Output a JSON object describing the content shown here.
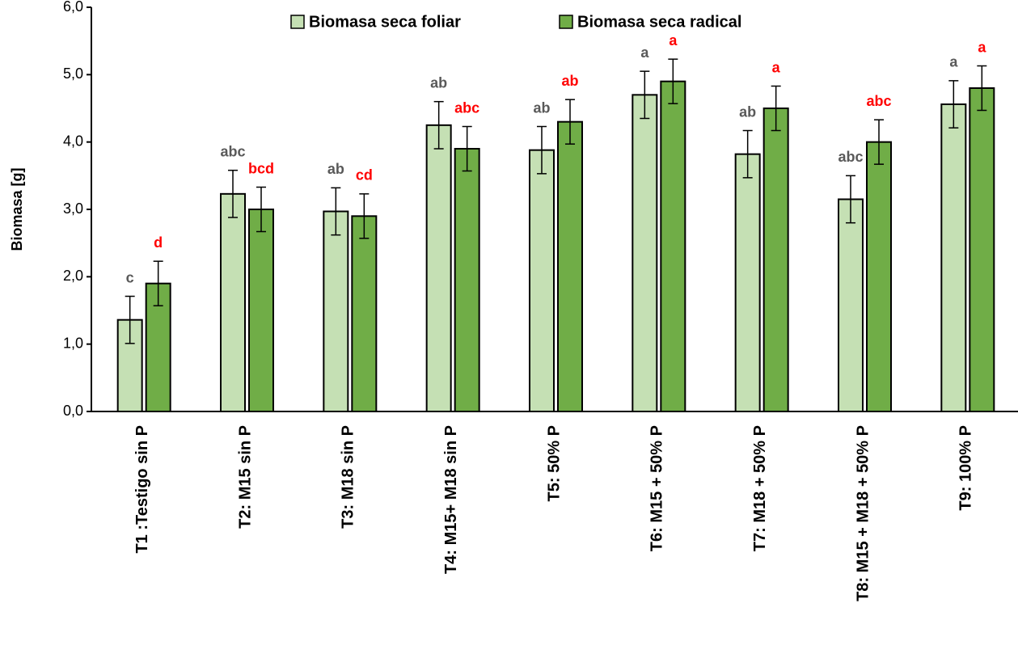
{
  "chart_data": {
    "type": "bar",
    "y_label": "Biomasa [g]",
    "categories": [
      "T1 :Testigo sin P",
      "T2: M15 sin P",
      "T3: M18 sin P",
      "T4: M15+ M18 sin P",
      "T5: 50% P",
      "T6: M15 + 50% P",
      "T7: M18 + 50% P",
      "T8: M15 + M18 + 50% P",
      "T9: 100% P"
    ],
    "series": [
      {
        "name": "Biomasa seca foliar",
        "color": "#c5e0b4",
        "letter_color": "#595959",
        "values": [
          1.36,
          3.23,
          2.97,
          4.25,
          3.88,
          4.7,
          3.82,
          3.15,
          4.56
        ],
        "errors": [
          0.35,
          0.35,
          0.35,
          0.35,
          0.35,
          0.35,
          0.35,
          0.35,
          0.35
        ],
        "letters": [
          "c",
          "abc",
          "ab",
          "ab",
          "ab",
          "a",
          "ab",
          "abc",
          "a"
        ]
      },
      {
        "name": "Biomasa seca radical",
        "color": "#70ad47",
        "letter_color": "#ff0000",
        "values": [
          1.9,
          3.0,
          2.9,
          3.9,
          4.3,
          4.9,
          4.5,
          4.0,
          4.8
        ],
        "errors": [
          0.33,
          0.33,
          0.33,
          0.33,
          0.33,
          0.33,
          0.33,
          0.33,
          0.33
        ],
        "letters": [
          "d",
          "bcd",
          "cd",
          "abc",
          "ab",
          "a",
          "a",
          "abc",
          "a"
        ]
      }
    ],
    "ylim": [
      0,
      6
    ],
    "yticks": [
      {
        "value": 0,
        "label": "0,0"
      },
      {
        "value": 1,
        "label": "1,0"
      },
      {
        "value": 2,
        "label": "2,0"
      },
      {
        "value": 3,
        "label": "3,0"
      },
      {
        "value": 4,
        "label": "4,0"
      },
      {
        "value": 5,
        "label": "5,0"
      },
      {
        "value": 6,
        "label": "6,0"
      }
    ],
    "legend": "top",
    "grid": false
  }
}
